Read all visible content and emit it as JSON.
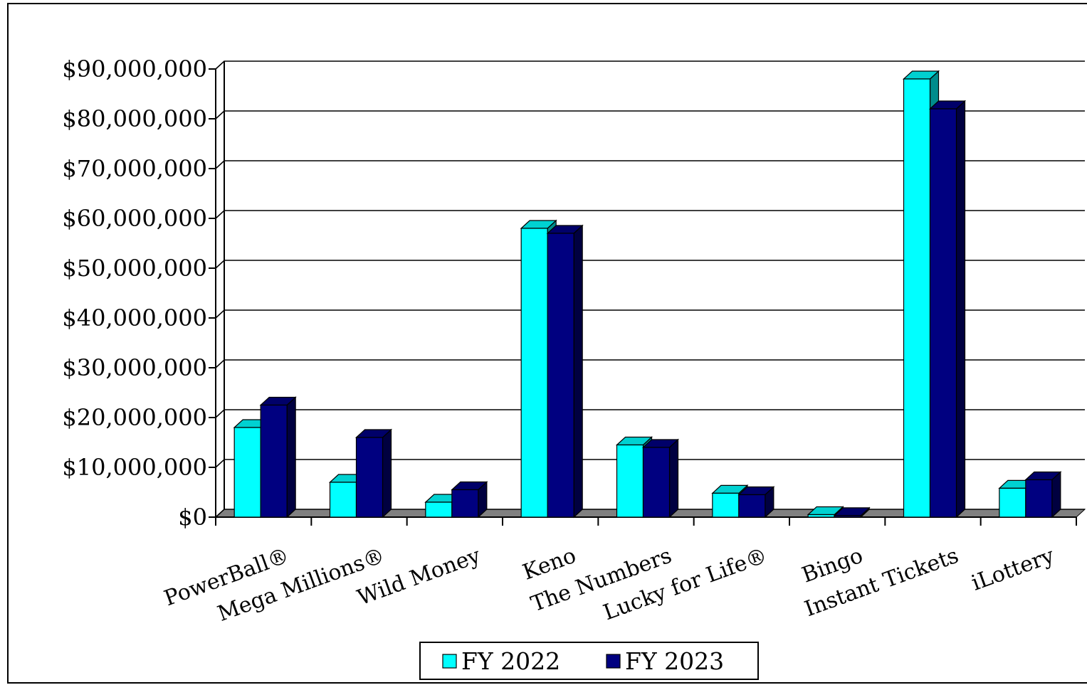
{
  "chart_data": {
    "type": "bar",
    "title": "",
    "xlabel": "",
    "ylabel": "",
    "categories": [
      "PowerBall®",
      "Mega Millions®",
      "Wild Money",
      "Keno",
      "The Numbers",
      "Lucky for Life®",
      "Bingo",
      "Instant Tickets",
      "iLottery"
    ],
    "series": [
      {
        "name": "FY 2022",
        "color": "#00FFFF",
        "values": [
          18000000,
          7000000,
          3000000,
          58000000,
          14500000,
          4800000,
          500000,
          88000000,
          5800000
        ]
      },
      {
        "name": "FY 2023",
        "color": "#000080",
        "values": [
          22500000,
          16000000,
          5500000,
          57000000,
          14000000,
          4500000,
          300000,
          82000000,
          7500000
        ]
      }
    ],
    "ylim": [
      0,
      90000000
    ],
    "ytick_labels": [
      "$0",
      "$10,000,000",
      "$20,000,000",
      "$30,000,000",
      "$40,000,000",
      "$50,000,000",
      "$60,000,000",
      "$70,000,000",
      "$80,000,000",
      "$90,000,000"
    ],
    "grid": true,
    "legend": "bottom-center",
    "style": "3d-clustered-column"
  }
}
